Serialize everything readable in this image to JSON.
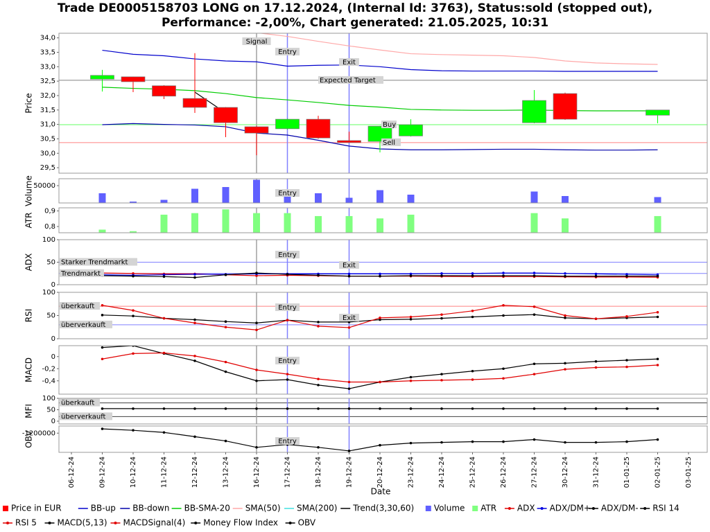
{
  "title": [
    "Trade DE0005158703 LONG on 17.12.2024, (Internal Id: 3763), Status:sold (stopped out),",
    "Performance: -2,00%, Chart generated: 21.05.2025, 10:31"
  ],
  "x_label": "Date",
  "categories": [
    "06-12-24",
    "09-12-24",
    "10-12-24",
    "11-12-24",
    "12-12-24",
    "13-12-24",
    "16-12-24",
    "17-12-24",
    "18-12-24",
    "19-12-24",
    "20-12-24",
    "23-12-24",
    "24-12-24",
    "25-12-24",
    "26-12-24",
    "27-12-24",
    "30-12-24",
    "31-12-24",
    "01-01-25",
    "02-01-25",
    "03-01-25"
  ],
  "event_lines": [
    {
      "date": "16-12-24",
      "color": "#a0a0a0"
    },
    {
      "date": "17-12-24",
      "color": "#8080ff"
    },
    {
      "date": "19-12-24",
      "color": "#8080ff"
    }
  ],
  "chart_data": [
    {
      "type": "candlestick",
      "y_label": "Price",
      "name": "Price in EUR",
      "up_color": "#00ff00",
      "down_color": "#ff0000",
      "ylim": [
        29.31,
        34.16
      ],
      "yticks": [
        {
          "value": 29.5,
          "label": "29,5"
        },
        {
          "value": 30,
          "label": "30,0"
        },
        {
          "value": 30.5,
          "label": "30,5"
        },
        {
          "value": 31,
          "label": "31,0"
        },
        {
          "value": 31.5,
          "label": "31,5"
        },
        {
          "value": 32,
          "label": "32,0"
        },
        {
          "value": 32.5,
          "label": "32,5"
        },
        {
          "value": 33,
          "label": "33,0"
        },
        {
          "value": 33.5,
          "label": "33,5"
        },
        {
          "value": 34,
          "label": "34,0"
        }
      ],
      "open": [
        null,
        32.57,
        32.65,
        32.34,
        31.9,
        31.59,
        30.92,
        30.85,
        31.18,
        30.44,
        30.41,
        30.6,
        null,
        null,
        null,
        31.06,
        32.07,
        null,
        null,
        31.32,
        null
      ],
      "high": [
        null,
        32.89,
        32.66,
        32.36,
        33.47,
        31.6,
        30.95,
        31.2,
        31.3,
        30.75,
        30.95,
        31.18,
        null,
        null,
        null,
        32.19,
        32.1,
        null,
        null,
        31.5,
        null
      ],
      "low": [
        null,
        32.14,
        32.12,
        31.88,
        31.4,
        30.56,
        29.93,
        30.82,
        30.5,
        30.37,
        30.03,
        30.58,
        null,
        null,
        null,
        31.04,
        31.16,
        null,
        null,
        31.04,
        null
      ],
      "close": [
        null,
        32.7,
        32.48,
        31.98,
        31.59,
        31.06,
        30.7,
        31.18,
        30.53,
        30.37,
        30.94,
        30.99,
        null,
        null,
        null,
        31.83,
        31.18,
        null,
        null,
        31.5,
        null
      ],
      "series": [
        {
          "name": "BB-up",
          "color": "#0000cc",
          "values": [
            null,
            33.57,
            33.43,
            33.38,
            33.27,
            33.2,
            33.17,
            33.02,
            33.05,
            33.06,
            33.0,
            32.9,
            32.86,
            32.85,
            32.85,
            32.85,
            32.84,
            32.84,
            32.84,
            32.84,
            null
          ]
        },
        {
          "name": "BB-down",
          "color": "#0000aa",
          "values": [
            null,
            30.99,
            31.03,
            31.0,
            30.98,
            30.92,
            30.7,
            30.63,
            30.45,
            30.25,
            30.15,
            30.12,
            30.12,
            30.13,
            30.14,
            30.14,
            30.12,
            30.11,
            30.11,
            30.12,
            null
          ]
        },
        {
          "name": "BB-SMA-20",
          "color": "#00cc00",
          "values": [
            null,
            32.29,
            32.25,
            32.22,
            32.17,
            32.07,
            31.93,
            31.85,
            31.76,
            31.66,
            31.6,
            31.52,
            31.5,
            31.49,
            31.49,
            31.5,
            31.48,
            31.47,
            31.47,
            31.47,
            null
          ]
        },
        {
          "name": "SMA(50)",
          "color": "#ffa8a8",
          "values": [
            null,
            null,
            null,
            null,
            null,
            null,
            34.18,
            34.05,
            33.88,
            33.72,
            33.58,
            33.45,
            33.42,
            33.4,
            33.38,
            33.32,
            33.2,
            33.13,
            33.1,
            33.08,
            null
          ]
        },
        {
          "name": "SMA(200)",
          "color": "#40e0e0",
          "values": [
            null,
            null,
            null,
            null,
            null,
            null,
            null,
            null,
            null,
            null,
            null,
            null,
            null,
            null,
            null,
            null,
            null,
            null,
            null,
            null,
            null
          ]
        },
        {
          "name": "Trend(3,30,60)",
          "color": "#000000",
          "values": [
            null,
            null,
            null,
            null,
            32.12,
            31.4,
            null,
            null,
            null,
            null,
            null,
            null,
            null,
            null,
            null,
            null,
            null,
            null,
            null,
            null,
            null
          ]
        }
      ],
      "hlines": [
        {
          "value": 32.53,
          "label": "Expected Target",
          "color": "#808080"
        },
        {
          "value": 30.99,
          "label": "Buy",
          "color": "#60ff60"
        },
        {
          "value": 30.37,
          "label": "Sell",
          "color": "#ff8080"
        }
      ],
      "annotations": [
        {
          "text": "Signal",
          "date": "16-12-24"
        },
        {
          "text": "Entry",
          "date": "17-12-24"
        },
        {
          "text": "Exit",
          "date": "19-12-24"
        }
      ]
    },
    {
      "type": "bar",
      "y_label": "Volume",
      "name": "Volume",
      "color": "#6060ff",
      "ylim": [
        0,
        70000
      ],
      "yticks": [
        50000
      ],
      "values": [
        null,
        28000,
        4000,
        9000,
        41000,
        46000,
        67000,
        22000,
        28000,
        15000,
        37000,
        24000,
        null,
        null,
        null,
        33000,
        20000,
        null,
        null,
        17000,
        null
      ],
      "annotations": [
        {
          "text": "Entry",
          "date": "17-12-24"
        }
      ]
    },
    {
      "type": "bar",
      "y_label": "ATR",
      "name": "ATR",
      "color": "#80ff80",
      "ylim": [
        0.76,
        0.92
      ],
      "yticks": [
        {
          "value": 0.8,
          "label": "0,8"
        },
        {
          "value": 0.9,
          "label": "0,9"
        }
      ],
      "values": [
        null,
        0.78,
        0.77,
        0.876,
        0.886,
        0.91,
        0.886,
        0.886,
        0.867,
        0.867,
        0.852,
        0.876,
        null,
        null,
        null,
        0.886,
        0.852,
        null,
        null,
        0.867,
        null
      ]
    },
    {
      "type": "line",
      "y_label": "ADX",
      "ylim": [
        0,
        100
      ],
      "yticks": [
        0,
        50,
        100
      ],
      "series": [
        {
          "name": "ADX",
          "color": "#e00000",
          "marker": true,
          "values": [
            null,
            26,
            25,
            24,
            24,
            22,
            20,
            21,
            20,
            19,
            19,
            19,
            18.5,
            18,
            18,
            18,
            17.5,
            17,
            17,
            16.5,
            null
          ]
        },
        {
          "name": "ADX/DM+",
          "color": "#0000e0",
          "marker": true,
          "values": [
            null,
            22,
            21,
            22,
            23,
            23,
            24,
            24,
            24,
            24,
            24,
            24,
            25,
            25,
            26,
            26,
            25,
            24,
            23,
            22,
            null
          ]
        },
        {
          "name": "ADX/DM-",
          "color": "#000000",
          "marker": true,
          "values": [
            null,
            20,
            19,
            18,
            16,
            22,
            26,
            23,
            21,
            19,
            19,
            20,
            20,
            20,
            20,
            20,
            19,
            19,
            19,
            19,
            null
          ]
        }
      ],
      "hlines": [
        {
          "value": 50,
          "label": "Starker Trendmarkt",
          "color": "#8080ff"
        },
        {
          "value": 25,
          "label": "Trendmarkt",
          "color": "#8080ff"
        }
      ],
      "annotations": [
        {
          "text": "Entry",
          "date": "17-12-24"
        },
        {
          "text": "Exit",
          "date": "19-12-24"
        }
      ]
    },
    {
      "type": "line",
      "y_label": "RSI",
      "ylim": [
        0,
        100
      ],
      "yticks": [
        0,
        50,
        100
      ],
      "series": [
        {
          "name": "RSI 14",
          "color": "#000000",
          "marker": true,
          "values": [
            null,
            51,
            49,
            44,
            41,
            37,
            34,
            40,
            36,
            36,
            41,
            42,
            44,
            47,
            50,
            52,
            45,
            43,
            45,
            47,
            null
          ]
        },
        {
          "name": "RSI 5",
          "color": "#e00000",
          "marker": true,
          "values": [
            null,
            72,
            61,
            44,
            34,
            25,
            19,
            40,
            27,
            24,
            45,
            47,
            52,
            60,
            72,
            69,
            50,
            43,
            48,
            57,
            null
          ]
        }
      ],
      "hlines": [
        {
          "value": 70,
          "label": "überkauft",
          "color": "#ff8080"
        },
        {
          "value": 30,
          "label": "überverkauft",
          "color": "#8080ff"
        }
      ],
      "annotations": [
        {
          "text": "Entry",
          "date": "17-12-24"
        },
        {
          "text": "Exit",
          "date": "19-12-24"
        }
      ]
    },
    {
      "type": "line",
      "y_label": "MACD",
      "ylim": [
        -0.62,
        0.18
      ],
      "yticks": [
        {
          "value": -0.4,
          "label": "-0,4"
        },
        {
          "value": -0.2,
          "label": "-0,2"
        },
        0
      ],
      "series": [
        {
          "name": "MACD(5,13)",
          "color": "#000000",
          "marker": true,
          "values": [
            null,
            0.15,
            0.18,
            0.05,
            -0.07,
            -0.25,
            -0.4,
            -0.38,
            -0.47,
            -0.53,
            -0.42,
            -0.34,
            -0.29,
            -0.24,
            -0.2,
            -0.12,
            -0.11,
            -0.08,
            -0.06,
            -0.04,
            null
          ]
        },
        {
          "name": "MACDSignal(4)",
          "color": "#e00000",
          "marker": true,
          "values": [
            null,
            -0.04,
            0.05,
            0.06,
            0.01,
            -0.09,
            -0.22,
            -0.29,
            -0.37,
            -0.42,
            -0.42,
            -0.4,
            -0.39,
            -0.38,
            -0.36,
            -0.29,
            -0.21,
            -0.18,
            -0.17,
            -0.14,
            null
          ]
        }
      ],
      "annotations": [
        {
          "text": "Entry",
          "date": "17-12-24"
        }
      ]
    },
    {
      "type": "line",
      "y_label": "MFI",
      "ylim": [
        -12,
        100
      ],
      "yticks": [
        0,
        50,
        100
      ],
      "series": [
        {
          "name": "Money Flow Index",
          "color": "#000000",
          "marker": true,
          "values": [
            null,
            55,
            55,
            55,
            55,
            55,
            55,
            55,
            55,
            55,
            55,
            55,
            55,
            55,
            55,
            55,
            55,
            55,
            55,
            55,
            null
          ]
        }
      ],
      "hlines": [
        {
          "value": 80,
          "label": "überkauft",
          "color": "#404040"
        },
        {
          "value": 20,
          "label": "überverkauft",
          "color": "#404040"
        }
      ]
    },
    {
      "type": "line",
      "y_label": "OBV",
      "ylim": [
        -1362000,
        -1140000
      ],
      "yticks": [
        -1200000
      ],
      "series": [
        {
          "name": "OBV",
          "color": "#000000",
          "marker": true,
          "values": [
            null,
            -1164000,
            -1176000,
            -1194000,
            -1230000,
            -1266000,
            -1320000,
            -1296000,
            -1320000,
            -1350000,
            -1302000,
            -1284000,
            -1278000,
            -1272000,
            -1272000,
            -1254000,
            -1278000,
            -1278000,
            -1272000,
            -1254000,
            null
          ]
        }
      ],
      "annotations": [
        {
          "text": "Entry",
          "date": "17-12-24"
        }
      ]
    }
  ]
}
